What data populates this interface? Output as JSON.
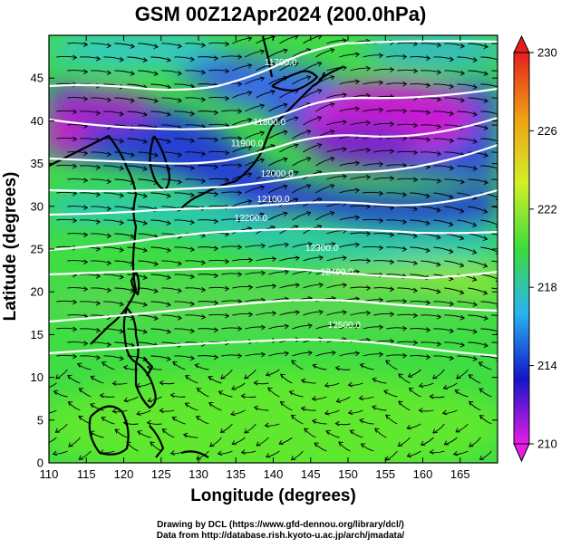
{
  "title": "GSM 00Z12Apr2024 (200.0hPa)",
  "x_axis": {
    "label": "Longitude (degrees)",
    "range": [
      110,
      170
    ],
    "ticks": [
      110,
      115,
      120,
      125,
      130,
      135,
      140,
      145,
      150,
      155,
      160,
      165
    ]
  },
  "y_axis": {
    "label": "Latitude  (degrees)",
    "range": [
      0,
      50
    ],
    "ticks": [
      0,
      5,
      10,
      15,
      20,
      25,
      30,
      35,
      40,
      45
    ]
  },
  "colorbar": {
    "range": [
      210,
      230
    ],
    "ticks": [
      210,
      214,
      218,
      222,
      226,
      230
    ],
    "colors": [
      "#e61ee6",
      "#1414c8",
      "#28b4f0",
      "#3cdc3c",
      "#d2f028",
      "#f0a014",
      "#e61e1e"
    ]
  },
  "contours": {
    "labels": [
      {
        "text": "11700.0",
        "lon": 141,
        "lat": 46.5
      },
      {
        "text": "11800.0",
        "lon": 139.5,
        "lat": 39.5
      },
      {
        "text": "11900.0",
        "lon": 136.5,
        "lat": 37
      },
      {
        "text": "12000.0",
        "lon": 140.5,
        "lat": 33.5
      },
      {
        "text": "12100.0",
        "lon": 140,
        "lat": 30.5
      },
      {
        "text": "12200.0",
        "lon": 137,
        "lat": 28.3
      },
      {
        "text": "12300.0",
        "lon": 146.5,
        "lat": 24.8
      },
      {
        "text": "12400.0",
        "lon": 148.5,
        "lat": 22
      },
      {
        "text": "12500.0",
        "lon": 149.5,
        "lat": 15.8
      }
    ]
  },
  "credits": {
    "line1": "Drawing by DCL (https://www.gfd-dennou.org/library/dcl/)",
    "line2": "Data from http://database.rish.kyoto-u.ac.jp/arch/jmadata/"
  },
  "colors": {
    "background": "#3cdc3c",
    "contour": "#ffffff",
    "streamline": "#000000",
    "coast": "#000000"
  }
}
